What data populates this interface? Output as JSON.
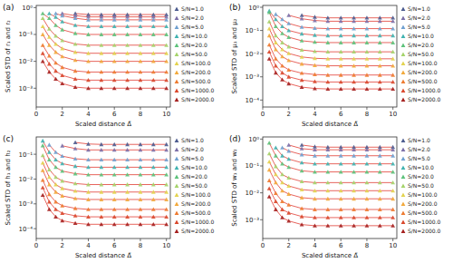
{
  "chart_data": [
    {
      "type": "scatter",
      "title": "(a)",
      "x_label": "Scaled distance Δ̃",
      "y_label": "Scaled STD of r₁ and r₂",
      "log": "y",
      "grid": false,
      "legend": "right",
      "marker": "triangle",
      "line_style": "solid",
      "xlim": [
        0,
        10.3
      ],
      "xticks": [
        0,
        2,
        4,
        6,
        8,
        10
      ],
      "ylim": [
        0.0002,
        1.2
      ],
      "yticks": [
        {
          "value": 1,
          "label": "10⁰"
        },
        {
          "value": 0.1,
          "label": "10⁻¹"
        },
        {
          "value": 0.01,
          "label": "10⁻²"
        },
        {
          "value": 0.001,
          "label": "10⁻³"
        }
      ],
      "x": [
        0.5,
        1,
        1.5,
        2,
        3,
        4,
        5,
        6,
        7,
        8,
        9,
        10
      ],
      "series": [
        {
          "name": "S/N=1.0",
          "color": "#4c5c8f",
          "values": [
            null,
            null,
            null,
            null,
            0.6,
            0.55,
            0.55,
            0.55,
            0.55,
            0.55,
            0.55,
            0.55
          ]
        },
        {
          "name": "S/N=2.0",
          "color": "#7b6fa8",
          "values": [
            null,
            null,
            null,
            0.6,
            0.5,
            0.45,
            0.45,
            0.45,
            0.45,
            0.45,
            0.45,
            0.45
          ]
        },
        {
          "name": "S/N=5.0",
          "color": "#6fa0d0",
          "values": [
            null,
            null,
            0.6,
            0.5,
            0.4,
            0.35,
            0.35,
            0.35,
            0.35,
            0.35,
            0.35,
            0.35
          ]
        },
        {
          "name": "S/N=10.0",
          "color": "#3fb3b0",
          "values": [
            null,
            0.6,
            0.44,
            0.3,
            0.22,
            0.2,
            0.2,
            0.2,
            0.2,
            0.2,
            0.2,
            0.2
          ]
        },
        {
          "name": "S/N=20.0",
          "color": "#5cc27a",
          "values": [
            0.6,
            0.4,
            0.22,
            0.15,
            0.11,
            0.1,
            0.1,
            0.1,
            0.1,
            0.1,
            0.1,
            0.1
          ]
        },
        {
          "name": "S/N=50.0",
          "color": "#a5d36a",
          "values": [
            0.4,
            0.16,
            0.088,
            0.06,
            0.044,
            0.04,
            0.04,
            0.04,
            0.04,
            0.04,
            0.04,
            0.04
          ]
        },
        {
          "name": "S/N=100.0",
          "color": "#e3d34f",
          "values": [
            0.2,
            0.08,
            0.044,
            0.03,
            0.022,
            0.02,
            0.02,
            0.02,
            0.02,
            0.02,
            0.02,
            0.02
          ]
        },
        {
          "name": "S/N=200.0",
          "color": "#f2a93b",
          "values": [
            0.1,
            0.04,
            0.022,
            0.015,
            0.011,
            0.01,
            0.01,
            0.01,
            0.01,
            0.01,
            0.01,
            0.01
          ]
        },
        {
          "name": "S/N=500.0",
          "color": "#ee7b30",
          "values": [
            0.04,
            0.016,
            0.0088,
            0.006,
            0.0044,
            0.004,
            0.004,
            0.004,
            0.004,
            0.004,
            0.004,
            0.004
          ]
        },
        {
          "name": "S/N=1000.0",
          "color": "#d9472b",
          "values": [
            0.02,
            0.008,
            0.0044,
            0.003,
            0.0022,
            0.002,
            0.002,
            0.002,
            0.002,
            0.002,
            0.002,
            0.002
          ]
        },
        {
          "name": "S/N=2000.0",
          "color": "#a5201f",
          "values": [
            0.01,
            0.004,
            0.0022,
            0.0015,
            0.0011,
            0.001,
            0.001,
            0.001,
            0.001,
            0.001,
            0.001,
            0.001
          ]
        }
      ]
    },
    {
      "type": "scatter",
      "title": "(b)",
      "x_label": "Scaled distance Δ̃",
      "y_label": "Scaled STD of μ₁ and μ₂",
      "log": "y",
      "grid": false,
      "legend": "right",
      "marker": "triangle",
      "line_style": "solid",
      "xlim": [
        0,
        10.3
      ],
      "xticks": [
        0,
        2,
        4,
        6,
        8,
        10
      ],
      "ylim": [
        5e-05,
        1.2
      ],
      "yticks": [
        {
          "value": 1,
          "label": "10⁰"
        },
        {
          "value": 0.1,
          "label": "10⁻¹"
        },
        {
          "value": 0.01,
          "label": "10⁻²"
        },
        {
          "value": 0.001,
          "label": "10⁻³"
        },
        {
          "value": 0.0001,
          "label": "10⁻⁴"
        }
      ],
      "x": [
        0.5,
        1,
        1.5,
        2,
        3,
        4,
        5,
        6,
        7,
        8,
        9,
        10
      ],
      "series": [
        {
          "name": "S/N=1.0",
          "color": "#4c5c8f",
          "values": [
            null,
            null,
            null,
            null,
            0.45,
            0.38,
            0.35,
            0.35,
            0.35,
            0.35,
            0.35,
            0.35
          ]
        },
        {
          "name": "S/N=2.0",
          "color": "#7b6fa8",
          "values": [
            null,
            null,
            null,
            0.45,
            0.32,
            0.27,
            0.25,
            0.25,
            0.25,
            0.25,
            0.25,
            0.25
          ]
        },
        {
          "name": "S/N=5.0",
          "color": "#6fa0d0",
          "values": [
            null,
            0.5,
            0.3,
            0.2,
            0.14,
            0.126,
            0.12,
            0.12,
            0.12,
            0.12,
            0.12,
            0.12
          ]
        },
        {
          "name": "S/N=10.0",
          "color": "#3fb3b0",
          "values": [
            0.7,
            0.3,
            0.15,
            0.1,
            0.072,
            0.063,
            0.06,
            0.06,
            0.06,
            0.06,
            0.06,
            0.06
          ]
        },
        {
          "name": "S/N=20.0",
          "color": "#5cc27a",
          "values": [
            0.6,
            0.15,
            0.075,
            0.051,
            0.036,
            0.0315,
            0.03,
            0.03,
            0.03,
            0.03,
            0.03,
            0.03
          ]
        },
        {
          "name": "S/N=50.0",
          "color": "#a5d36a",
          "values": [
            0.24,
            0.06,
            0.03,
            0.02,
            0.0144,
            0.0126,
            0.012,
            0.012,
            0.012,
            0.012,
            0.012,
            0.012
          ]
        },
        {
          "name": "S/N=100.0",
          "color": "#e3d34f",
          "values": [
            0.12,
            0.03,
            0.015,
            0.0102,
            0.0072,
            0.0063,
            0.006,
            0.006,
            0.006,
            0.006,
            0.006,
            0.006
          ]
        },
        {
          "name": "S/N=200.0",
          "color": "#f2a93b",
          "values": [
            0.06,
            0.015,
            0.0075,
            0.0051,
            0.0036,
            0.00315,
            0.003,
            0.003,
            0.003,
            0.003,
            0.003,
            0.003
          ]
        },
        {
          "name": "S/N=500.0",
          "color": "#ee7b30",
          "values": [
            0.024,
            0.006,
            0.003,
            0.002,
            0.00144,
            0.00126,
            0.0012,
            0.0012,
            0.0012,
            0.0012,
            0.0012,
            0.0012
          ]
        },
        {
          "name": "S/N=1000.0",
          "color": "#d9472b",
          "values": [
            0.012,
            0.003,
            0.0015,
            0.001,
            0.00072,
            0.00063,
            0.0006,
            0.0006,
            0.0006,
            0.0006,
            0.0006,
            0.0006
          ]
        },
        {
          "name": "S/N=2000.0",
          "color": "#a5201f",
          "values": [
            0.006,
            0.0015,
            0.00075,
            0.00051,
            0.00036,
            0.000315,
            0.0003,
            0.0003,
            0.0003,
            0.0003,
            0.0003,
            0.0003
          ]
        }
      ]
    },
    {
      "type": "scatter",
      "title": "(c)",
      "x_label": "Scaled distance Δ̃",
      "y_label": "Scaled STD of h₁ and h₂",
      "log": "y",
      "grid": false,
      "legend": "right",
      "marker": "triangle",
      "line_style": "solid",
      "xlim": [
        0,
        10.3
      ],
      "xticks": [
        0,
        2,
        4,
        6,
        8,
        10
      ],
      "ylim": [
        4e-05,
        0.5
      ],
      "yticks": [
        {
          "value": 0.1,
          "label": "10⁻¹"
        },
        {
          "value": 0.01,
          "label": "10⁻²"
        },
        {
          "value": 0.001,
          "label": "10⁻³"
        },
        {
          "value": 0.0001,
          "label": "10⁻⁴"
        }
      ],
      "x": [
        0.5,
        1,
        1.5,
        2,
        3,
        4,
        5,
        6,
        7,
        8,
        9,
        10
      ],
      "series": [
        {
          "name": "S/N=1.0",
          "color": "#4c5c8f",
          "values": [
            null,
            null,
            null,
            null,
            0.3,
            0.26,
            0.25,
            0.25,
            0.25,
            0.25,
            0.25,
            0.25
          ]
        },
        {
          "name": "S/N=2.0",
          "color": "#7b6fa8",
          "values": [
            null,
            null,
            null,
            0.22,
            0.17,
            0.15,
            0.15,
            0.15,
            0.15,
            0.15,
            0.15,
            0.15
          ]
        },
        {
          "name": "S/N=5.0",
          "color": "#6fa0d0",
          "values": [
            null,
            0.24,
            0.12,
            0.084,
            0.066,
            0.06,
            0.06,
            0.06,
            0.06,
            0.06,
            0.06,
            0.06
          ]
        },
        {
          "name": "S/N=10.0",
          "color": "#3fb3b0",
          "values": [
            0.35,
            0.12,
            0.06,
            0.042,
            0.033,
            0.03,
            0.03,
            0.03,
            0.03,
            0.03,
            0.03,
            0.03
          ]
        },
        {
          "name": "S/N=20.0",
          "color": "#5cc27a",
          "values": [
            0.225,
            0.06,
            0.03,
            0.021,
            0.0165,
            0.015,
            0.015,
            0.015,
            0.015,
            0.015,
            0.015,
            0.015
          ]
        },
        {
          "name": "S/N=50.0",
          "color": "#a5d36a",
          "values": [
            0.09,
            0.024,
            0.012,
            0.0084,
            0.0066,
            0.006,
            0.006,
            0.006,
            0.006,
            0.006,
            0.006,
            0.006
          ]
        },
        {
          "name": "S/N=100.0",
          "color": "#e3d34f",
          "values": [
            0.045,
            0.012,
            0.006,
            0.0042,
            0.0033,
            0.003,
            0.003,
            0.003,
            0.003,
            0.003,
            0.003,
            0.003
          ]
        },
        {
          "name": "S/N=200.0",
          "color": "#f2a93b",
          "values": [
            0.0225,
            0.006,
            0.003,
            0.0021,
            0.00165,
            0.0015,
            0.0015,
            0.0015,
            0.0015,
            0.0015,
            0.0015,
            0.0015
          ]
        },
        {
          "name": "S/N=500.0",
          "color": "#ee7b30",
          "values": [
            0.009,
            0.0024,
            0.0012,
            0.00084,
            0.00066,
            0.0006,
            0.0006,
            0.0006,
            0.0006,
            0.0006,
            0.0006,
            0.0006
          ]
        },
        {
          "name": "S/N=1000.0",
          "color": "#d9472b",
          "values": [
            0.0045,
            0.0012,
            0.0006,
            0.00042,
            0.00033,
            0.0003,
            0.0003,
            0.0003,
            0.0003,
            0.0003,
            0.0003,
            0.0003
          ]
        },
        {
          "name": "S/N=2000.0",
          "color": "#a5201f",
          "values": [
            0.00225,
            0.0006,
            0.0003,
            0.00021,
            0.000165,
            0.00015,
            0.00015,
            0.00015,
            0.00015,
            0.00015,
            0.00015,
            0.00015
          ]
        }
      ]
    },
    {
      "type": "scatter",
      "title": "(d)",
      "x_label": "Scaled distance Δ̃",
      "y_label": "Scaled STD of w₁ and w₂",
      "log": "y",
      "grid": false,
      "legend": "right",
      "marker": "triangle",
      "line_style": "solid",
      "xlim": [
        0,
        10.3
      ],
      "xticks": [
        0,
        2,
        4,
        6,
        8,
        10
      ],
      "ylim": [
        0.0002,
        1.2
      ],
      "yticks": [
        {
          "value": 1,
          "label": "10⁰"
        },
        {
          "value": 0.1,
          "label": "10⁻¹"
        },
        {
          "value": 0.01,
          "label": "10⁻²"
        },
        {
          "value": 0.001,
          "label": "10⁻³"
        }
      ],
      "x": [
        0.5,
        1,
        1.5,
        2,
        3,
        4,
        5,
        6,
        7,
        8,
        9,
        10
      ],
      "series": [
        {
          "name": "S/N=1.0",
          "color": "#4c5c8f",
          "values": [
            null,
            null,
            null,
            null,
            0.6,
            0.52,
            0.5,
            0.5,
            0.5,
            0.5,
            0.5,
            0.5
          ]
        },
        {
          "name": "S/N=2.0",
          "color": "#7b6fa8",
          "values": [
            null,
            null,
            null,
            0.6,
            0.44,
            0.4,
            0.4,
            0.4,
            0.4,
            0.4,
            0.4,
            0.4
          ]
        },
        {
          "name": "S/N=5.0",
          "color": "#6fa0d0",
          "values": [
            null,
            null,
            0.48,
            0.36,
            0.264,
            0.24,
            0.24,
            0.24,
            0.24,
            0.24,
            0.24,
            0.24
          ]
        },
        {
          "name": "S/N=10.0",
          "color": "#3fb3b0",
          "values": [
            null,
            0.48,
            0.24,
            0.18,
            0.132,
            0.12,
            0.12,
            0.12,
            0.12,
            0.12,
            0.12,
            0.12
          ]
        },
        {
          "name": "S/N=20.0",
          "color": "#5cc27a",
          "values": [
            0.72,
            0.24,
            0.12,
            0.09,
            0.066,
            0.06,
            0.06,
            0.06,
            0.06,
            0.06,
            0.06,
            0.06
          ]
        },
        {
          "name": "S/N=50.0",
          "color": "#a5d36a",
          "values": [
            0.288,
            0.096,
            0.048,
            0.036,
            0.0264,
            0.024,
            0.024,
            0.024,
            0.024,
            0.024,
            0.024,
            0.024
          ]
        },
        {
          "name": "S/N=100.0",
          "color": "#e3d34f",
          "values": [
            0.144,
            0.048,
            0.024,
            0.018,
            0.0132,
            0.012,
            0.012,
            0.012,
            0.012,
            0.012,
            0.012,
            0.012
          ]
        },
        {
          "name": "S/N=200.0",
          "color": "#f2a93b",
          "values": [
            0.072,
            0.024,
            0.012,
            0.009,
            0.0066,
            0.006,
            0.006,
            0.006,
            0.006,
            0.006,
            0.006,
            0.006
          ]
        },
        {
          "name": "S/N=500.0",
          "color": "#ee7b30",
          "values": [
            0.0288,
            0.0096,
            0.0048,
            0.0036,
            0.00264,
            0.0024,
            0.0024,
            0.0024,
            0.0024,
            0.0024,
            0.0024,
            0.0024
          ]
        },
        {
          "name": "S/N=1000.0",
          "color": "#d9472b",
          "values": [
            0.0144,
            0.0048,
            0.0024,
            0.0018,
            0.00132,
            0.0012,
            0.0012,
            0.0012,
            0.0012,
            0.0012,
            0.0012,
            0.0012
          ]
        },
        {
          "name": "S/N=2000.0",
          "color": "#a5201f",
          "values": [
            0.0072,
            0.0024,
            0.0012,
            0.0009,
            0.00066,
            0.0006,
            0.0006,
            0.0006,
            0.0006,
            0.0006,
            0.0006,
            0.0006
          ]
        }
      ]
    }
  ]
}
